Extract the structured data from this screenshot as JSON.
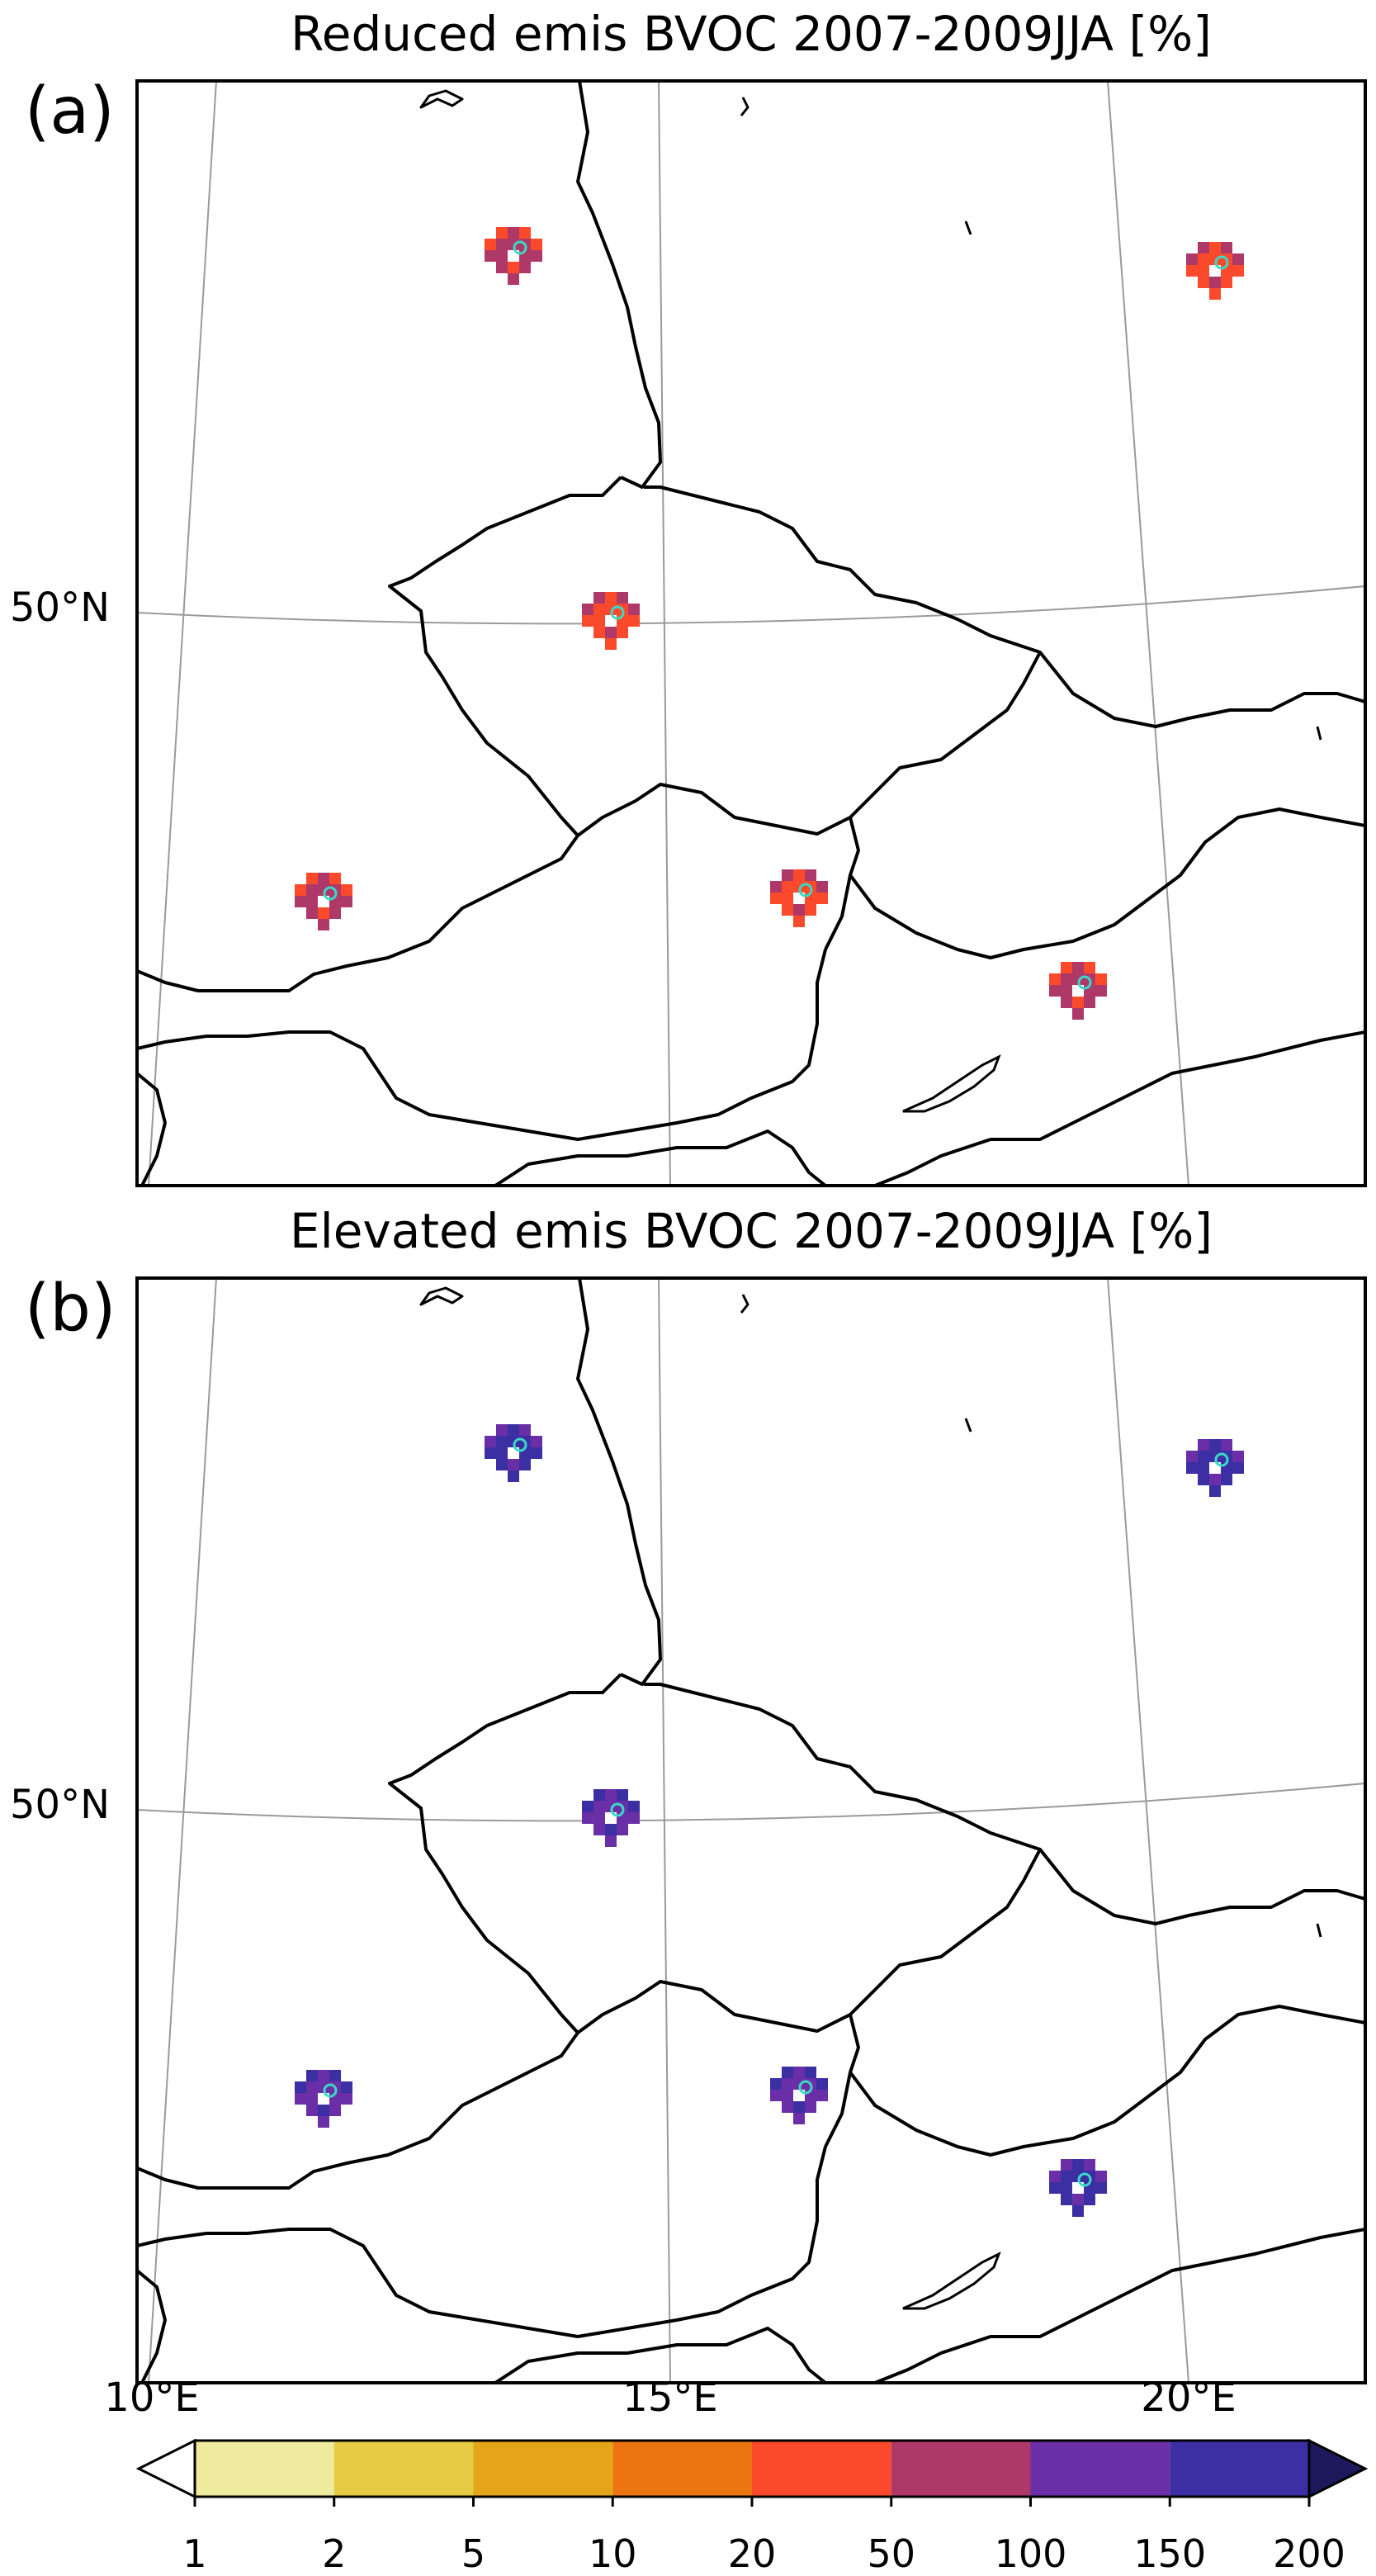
{
  "panels": [
    {
      "letter": "(a)",
      "title": "Reduced emis BVOC 2007-2009JJA [%]",
      "lat_label": "50°N"
    },
    {
      "letter": "(b)",
      "title": "Elevated emis BVOC 2007-2009JJA [%]",
      "lat_label": "50°N"
    }
  ],
  "lon_labels": [
    "10°E",
    "15°E",
    "20°E"
  ],
  "colorbar": {
    "ticks": [
      "1",
      "2",
      "5",
      "10",
      "20",
      "50",
      "100",
      "150",
      "200"
    ],
    "colors": [
      "#eeea9e",
      "#e6cc44",
      "#e5a518",
      "#ec7512",
      "#fb4a2b",
      "#ae3968",
      "#6a2fa7",
      "#3b2fa3"
    ],
    "extend_under_color": "#ffffff",
    "extend_over_color": "#1c1a5c"
  },
  "chart_data": {
    "type": "heatmap",
    "projection": "conic",
    "extent": {
      "lon": [
        10,
        21.5
      ],
      "lat": [
        46,
        54.5
      ]
    },
    "bounds": [
      1,
      2,
      5,
      10,
      20,
      50,
      100,
      150,
      200
    ],
    "extend": "both",
    "gridlines": {
      "lon": [
        10,
        15,
        20
      ],
      "lat": [
        50
      ]
    },
    "station_marker_color": "#39d9c6",
    "panels": [
      {
        "name": "Reduced emis BVOC 2007-2009JJA [%]",
        "sites": [
          {
            "label": "",
            "dominant_colors": [
              "#fb4a2b",
              "#ae3968"
            ]
          },
          {
            "label": "",
            "dominant_colors": [
              "#ae3968",
              "#fb4a2b"
            ]
          },
          {
            "label": "",
            "dominant_colors": [
              "#ae3968",
              "#fb4a2b"
            ]
          },
          {
            "label": "",
            "dominant_colors": [
              "#fb4a2b",
              "#ae3968"
            ]
          },
          {
            "label": "",
            "dominant_colors": [
              "#ae3968",
              "#fb4a2b"
            ]
          },
          {
            "label": "",
            "dominant_colors": [
              "#fb4a2b",
              "#ae3968"
            ]
          }
        ]
      },
      {
        "name": "Elevated emis BVOC 2007-2009JJA [%]",
        "sites": [
          {
            "label": "",
            "dominant_colors": [
              "#6a2fa7",
              "#3b2fa3"
            ]
          },
          {
            "label": "",
            "dominant_colors": [
              "#6a2fa7",
              "#3b2fa3"
            ]
          },
          {
            "label": "",
            "dominant_colors": [
              "#3b2fa3",
              "#6a2fa7"
            ]
          },
          {
            "label": "",
            "dominant_colors": [
              "#3b2fa3",
              "#6a2fa7"
            ]
          },
          {
            "label": "",
            "dominant_colors": [
              "#3b2fa3",
              "#6a2fa7"
            ]
          },
          {
            "label": "",
            "dominant_colors": [
              "#6a2fa7",
              "#3b2fa3"
            ]
          }
        ]
      }
    ]
  }
}
